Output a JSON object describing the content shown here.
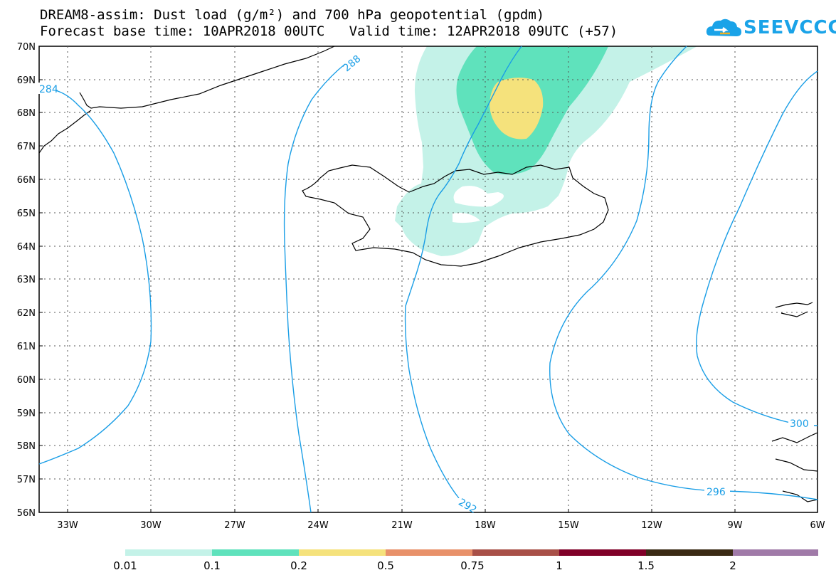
{
  "header": {
    "title_line1": "DREAM8-assim: Dust load (g/m²) and 700 hPa geopotential (gpdm)",
    "title_line2": "Forecast base time: 10APR2018 00UTC   Valid time: 12APR2018 09UTC (+57)"
  },
  "logo": {
    "text": "SEEVCCC",
    "icon": "cloud-icon",
    "color": "#1aa3e8"
  },
  "map": {
    "lat_labels": [
      "70N",
      "69N",
      "68N",
      "67N",
      "66N",
      "65N",
      "64N",
      "63N",
      "62N",
      "61N",
      "60N",
      "59N",
      "58N",
      "57N",
      "56N"
    ],
    "lon_labels": [
      "33W",
      "30W",
      "27W",
      "24W",
      "21W",
      "18W",
      "15W",
      "12W",
      "9W",
      "6W"
    ],
    "contour_labels": [
      "284",
      "288",
      "292",
      "296",
      "300"
    ],
    "contour_color": "#1a9ee6"
  },
  "colorbar": {
    "labels": [
      "0.01",
      "0.1",
      "0.2",
      "0.5",
      "0.75",
      "1",
      "1.5",
      "2"
    ],
    "colors": [
      "#c4f2e8",
      "#5fe2bc",
      "#f5e27c",
      "#e8916a",
      "#a85048",
      "#800028",
      "#3a2a14",
      "#a07aa8"
    ]
  }
}
